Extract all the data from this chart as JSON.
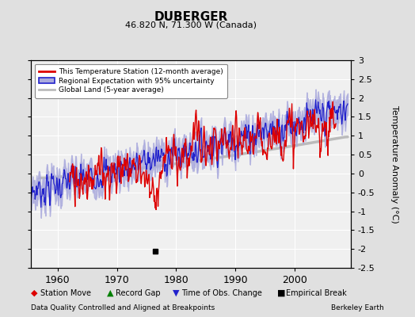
{
  "title": "DUBERGER",
  "subtitle": "46.820 N, 71.300 W (Canada)",
  "ylabel": "Temperature Anomaly (°C)",
  "xlabel_note": "Data Quality Controlled and Aligned at Breakpoints",
  "credit": "Berkeley Earth",
  "ylim": [
    -2.5,
    3.0
  ],
  "xlim": [
    1955.5,
    2009.5
  ],
  "yticks": [
    -2.5,
    -2,
    -1.5,
    -1,
    -0.5,
    0,
    0.5,
    1,
    1.5,
    2,
    2.5,
    3
  ],
  "xticks": [
    1960,
    1970,
    1980,
    1990,
    2000
  ],
  "bg_color": "#e0e0e0",
  "plot_bg_color": "#f0f0f0",
  "grid_color": "#ffffff",
  "station_color": "#dd0000",
  "regional_color": "#2222cc",
  "regional_fill_color": "#aaaadd",
  "global_color": "#bbbbbb",
  "empirical_break_year": 1976.5,
  "empirical_break_value": -2.05,
  "legend_labels": [
    "This Temperature Station (12-month average)",
    "Regional Expectation with 95% uncertainty",
    "Global Land (5-year average)"
  ],
  "bottom_legend": [
    "Station Move",
    "Record Gap",
    "Time of Obs. Change",
    "Empirical Break"
  ]
}
